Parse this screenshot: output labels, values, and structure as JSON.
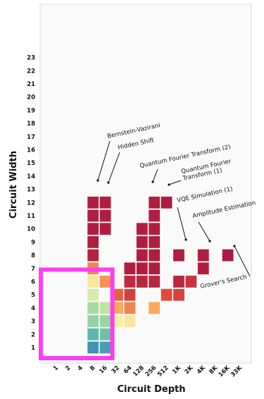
{
  "chart_data": {
    "type": "heatmap",
    "xlabel": "Circuit Depth",
    "ylabel": "Circuit Width",
    "x_ticks": [
      "1",
      "2",
      "4",
      "8",
      "16",
      "32",
      "64",
      "128",
      "256",
      "512",
      "1K",
      "2K",
      "4K",
      "8K",
      "16K",
      "33K"
    ],
    "y_ticks": [
      1,
      2,
      3,
      4,
      5,
      6,
      7,
      8,
      9,
      10,
      11,
      12,
      13,
      14,
      15,
      16,
      17,
      18,
      19,
      20,
      21,
      22,
      23
    ],
    "highlight_region": {
      "x_range": [
        "1",
        "16"
      ],
      "y_range": [
        1,
        6
      ],
      "color": "#ff3ef0"
    },
    "cells": [
      {
        "x": "8",
        "y": 1,
        "v": 0.1
      },
      {
        "x": "16",
        "y": 1,
        "v": 0.15
      },
      {
        "x": "8",
        "y": 2,
        "v": 0.25
      },
      {
        "x": "16",
        "y": 2,
        "v": 0.3
      },
      {
        "x": "8",
        "y": 3,
        "v": 0.4
      },
      {
        "x": "16",
        "y": 3,
        "v": 0.42
      },
      {
        "x": "32",
        "y": 3,
        "v": 0.6
      },
      {
        "x": "64",
        "y": 3,
        "v": 0.62
      },
      {
        "x": "8",
        "y": 4,
        "v": 0.45
      },
      {
        "x": "16",
        "y": 4,
        "v": 0.5
      },
      {
        "x": "32",
        "y": 4,
        "v": 0.75
      },
      {
        "x": "64",
        "y": 4,
        "v": 0.8
      },
      {
        "x": "256",
        "y": 4,
        "v": 0.75
      },
      {
        "x": "8",
        "y": 5,
        "v": 0.55
      },
      {
        "x": "32",
        "y": 5,
        "v": 0.85
      },
      {
        "x": "64",
        "y": 5,
        "v": 0.9
      },
      {
        "x": "512",
        "y": 5,
        "v": 0.88
      },
      {
        "x": "1K",
        "y": 5,
        "v": 0.9
      },
      {
        "x": "8",
        "y": 6,
        "v": 0.62
      },
      {
        "x": "16",
        "y": 6,
        "v": 0.78
      },
      {
        "x": "64",
        "y": 6,
        "v": 0.95
      },
      {
        "x": "128",
        "y": 6,
        "v": 0.96
      },
      {
        "x": "256",
        "y": 6,
        "v": 0.96
      },
      {
        "x": "1K",
        "y": 6,
        "v": 0.96
      },
      {
        "x": "2K",
        "y": 6,
        "v": 0.93
      },
      {
        "x": "8",
        "y": 7,
        "v": 0.8
      },
      {
        "x": "64",
        "y": 7,
        "v": 0.98
      },
      {
        "x": "128",
        "y": 7,
        "v": 0.98
      },
      {
        "x": "256",
        "y": 7,
        "v": 0.98
      },
      {
        "x": "4K",
        "y": 7,
        "v": 0.98
      },
      {
        "x": "8",
        "y": 8,
        "v": 0.97
      },
      {
        "x": "128",
        "y": 8,
        "v": 0.98
      },
      {
        "x": "256",
        "y": 8,
        "v": 0.98
      },
      {
        "x": "1K",
        "y": 8,
        "v": 0.98
      },
      {
        "x": "4K",
        "y": 8,
        "v": 0.98
      },
      {
        "x": "16K",
        "y": 8,
        "v": 0.99
      },
      {
        "x": "8",
        "y": 9,
        "v": 0.98
      },
      {
        "x": "128",
        "y": 9,
        "v": 0.98
      },
      {
        "x": "256",
        "y": 9,
        "v": 0.98
      },
      {
        "x": "8",
        "y": 10,
        "v": 0.98
      },
      {
        "x": "16",
        "y": 10,
        "v": 0.98
      },
      {
        "x": "128",
        "y": 10,
        "v": 0.98
      },
      {
        "x": "256",
        "y": 10,
        "v": 0.98
      },
      {
        "x": "8",
        "y": 11,
        "v": 0.98
      },
      {
        "x": "16",
        "y": 11,
        "v": 0.98
      },
      {
        "x": "256",
        "y": 11,
        "v": 0.98
      },
      {
        "x": "8",
        "y": 12,
        "v": 0.98
      },
      {
        "x": "16",
        "y": 12,
        "v": 0.98
      },
      {
        "x": "256",
        "y": 12,
        "v": 0.98
      },
      {
        "x": "512",
        "y": 12,
        "v": 0.98
      }
    ],
    "annotations": [
      {
        "lines": [
          "Bernstein-Vazirani"
        ],
        "target": {
          "x": "8",
          "y": 12
        }
      },
      {
        "lines": [
          "Hidden Shift"
        ],
        "target": {
          "x": "16",
          "y": 12
        }
      },
      {
        "lines": [
          "Quantum Fourier Transform (2)"
        ],
        "target": {
          "x": "256",
          "y": 12
        }
      },
      {
        "lines": [
          "Quantum Fourier",
          "Transform (1)"
        ],
        "target": {
          "x": "512",
          "y": 12
        }
      },
      {
        "lines": [
          "VQE Simulation (1)"
        ],
        "target": {
          "x": "1K",
          "y": 8
        }
      },
      {
        "lines": [
          "Amplitude Estimation"
        ],
        "target": {
          "x": "4K",
          "y": 8
        }
      },
      {
        "lines": [
          "Grover's Search"
        ],
        "target": {
          "x": "16K",
          "y": 8
        }
      }
    ]
  }
}
